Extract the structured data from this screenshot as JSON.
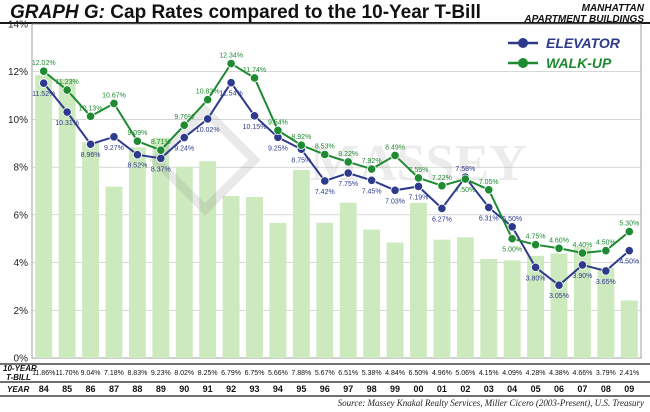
{
  "header": {
    "title_prefix": "GRAPH G:",
    "title_main": "Cap Rates compared to the 10-Year T-Bill",
    "subtitle": "MANHATTAN\nAPARTMENT BUILDINGS"
  },
  "row_labels": {
    "tbill": "10-YEAR\nT-BILL",
    "year": "YEAR"
  },
  "source": "Source: Massey Knakal Realty Services, Miller Cicero (2003-Present), U.S. Treasury",
  "colors": {
    "elevator": "#2e3a8c",
    "walkup": "#1e8a32",
    "bars": "#cde9be",
    "grid": "#bfbfbf"
  },
  "chart_data": {
    "type": "bar",
    "ylim": [
      0,
      14
    ],
    "yticks": [
      "0%",
      "2%",
      "4%",
      "6%",
      "8%",
      "10%",
      "12%",
      "14%"
    ],
    "ytick_values": [
      0,
      2,
      4,
      6,
      8,
      10,
      12,
      14
    ],
    "categories": [
      "84",
      "85",
      "86",
      "87",
      "88",
      "89",
      "90",
      "91",
      "92",
      "93",
      "94",
      "95",
      "96",
      "97",
      "98",
      "99",
      "00",
      "01",
      "02",
      "03",
      "04",
      "05",
      "06",
      "07",
      "08",
      "09"
    ],
    "tbill": {
      "values": [
        11.86,
        11.7,
        9.04,
        7.18,
        8.83,
        9.23,
        8.02,
        8.25,
        6.79,
        6.75,
        5.66,
        7.88,
        5.67,
        6.51,
        5.38,
        4.84,
        6.5,
        4.96,
        5.06,
        4.15,
        4.09,
        4.28,
        4.38,
        4.66,
        3.79,
        2.41
      ],
      "labels": [
        "11.86%",
        "11.70%",
        "9.04%",
        "7.18%",
        "8.83%",
        "9.23%",
        "8.02%",
        "8.25%",
        "6.79%",
        "6.75%",
        "5.66%",
        "7.88%",
        "5.67%",
        "6.51%",
        "5.38%",
        "4.84%",
        "6.50%",
        "4.96%",
        "5.06%",
        "4.15%",
        "4.09%",
        "4.28%",
        "4.38%",
        "4.66%",
        "3.79%",
        "2.41%"
      ]
    },
    "series": [
      {
        "name": "ELEVATOR",
        "values": [
          11.52,
          10.31,
          8.96,
          9.27,
          8.52,
          8.37,
          9.24,
          10.02,
          11.54,
          10.15,
          9.25,
          8.75,
          7.42,
          7.75,
          7.45,
          7.03,
          7.19,
          6.27,
          7.58,
          6.31,
          5.5,
          3.8,
          3.05,
          3.9,
          3.65,
          4.5
        ],
        "labels": [
          "11.52%",
          "10.31%",
          "8.96%",
          "9.27%",
          "8.52%",
          "8.37%",
          "9.24%",
          "10.02%",
          "11.54%",
          "10.15%",
          "9.25%",
          "8.75%",
          "7.42%",
          "7.75%",
          "7.45%",
          "7.03%",
          "7.19%",
          "6.27%",
          "7.58%",
          "6.31%",
          "5.50%",
          "3.80%",
          "3.05%",
          "3.90%",
          "3.65%",
          "4.50%"
        ]
      },
      {
        "name": "WALK-UP",
        "values": [
          12.02,
          11.23,
          10.13,
          10.67,
          9.09,
          8.71,
          9.76,
          10.83,
          12.34,
          11.74,
          9.54,
          8.92,
          8.53,
          8.22,
          7.92,
          8.49,
          7.55,
          7.22,
          7.5,
          7.05,
          5.0,
          4.75,
          4.6,
          4.4,
          4.5,
          5.3
        ],
        "labels": [
          "12.02%",
          "11.23%",
          "10.13%",
          "10.67%",
          "9.09%",
          "8.71%",
          "9.76%",
          "10.83%",
          "12.34%",
          "11.74%",
          "9.54%",
          "8.92%",
          "8.53%",
          "8.22%",
          "7.92%",
          "8.49%",
          "7.55%",
          "7.22%",
          "7.50%",
          "7.05%",
          "5.00%",
          "4.75%",
          "4.60%",
          "4.40%",
          "4.50%",
          "5.30%"
        ]
      }
    ],
    "legend_position": "top-right",
    "grid": true
  }
}
